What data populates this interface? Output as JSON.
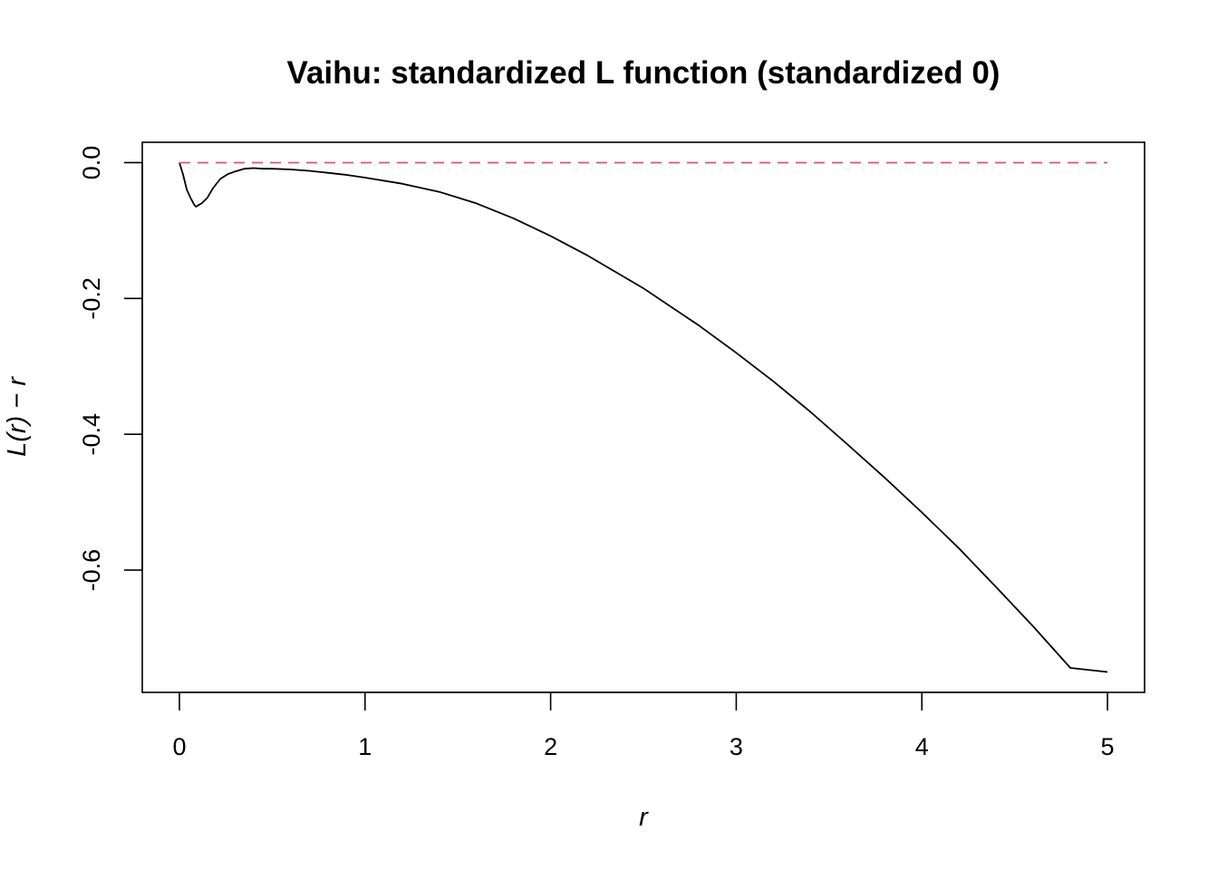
{
  "chart_data": {
    "type": "line",
    "title": "Vaihu: standardized L function (standardized 0)",
    "xlabel": "r",
    "ylabel": "L(r) − r",
    "xlim": [
      -0.2,
      5.2
    ],
    "ylim": [
      -0.78,
      0.03
    ],
    "x_ticks": [
      0,
      1,
      2,
      3,
      4,
      5
    ],
    "x_tick_labels": [
      "0",
      "1",
      "2",
      "3",
      "4",
      "5"
    ],
    "y_ticks": [
      0.0,
      -0.2,
      -0.4,
      -0.6
    ],
    "y_tick_labels": [
      "0.0",
      "-0.2",
      "-0.4",
      "-0.6"
    ],
    "grid": false,
    "series": [
      {
        "style": "solid",
        "color": "#000000",
        "x": [
          0,
          0.02,
          0.04,
          0.06,
          0.08,
          0.09,
          0.1,
          0.12,
          0.15,
          0.18,
          0.22,
          0.26,
          0.3,
          0.35,
          0.4,
          0.45,
          0.5,
          0.6,
          0.7,
          0.8,
          0.9,
          1.0,
          1.2,
          1.4,
          1.6,
          1.8,
          2.0,
          2.2,
          2.5,
          2.8,
          3.0,
          3.2,
          3.4,
          3.6,
          3.8,
          4.0,
          4.2,
          4.4,
          4.6,
          4.8,
          5.0
        ],
        "y": [
          0,
          -0.018,
          -0.04,
          -0.052,
          -0.062,
          -0.065,
          -0.063,
          -0.06,
          -0.052,
          -0.038,
          -0.024,
          -0.017,
          -0.013,
          -0.009,
          -0.008,
          -0.009,
          -0.009,
          -0.01,
          -0.012,
          -0.015,
          -0.018,
          -0.022,
          -0.031,
          -0.043,
          -0.06,
          -0.082,
          -0.108,
          -0.137,
          -0.185,
          -0.24,
          -0.28,
          -0.322,
          -0.367,
          -0.415,
          -0.464,
          -0.515,
          -0.568,
          -0.625,
          -0.683,
          -0.744,
          -0.75
        ]
      },
      {
        "style": "dashed",
        "color": "#DF536B",
        "x": [
          0,
          5
        ],
        "y": [
          0,
          0
        ]
      }
    ]
  }
}
